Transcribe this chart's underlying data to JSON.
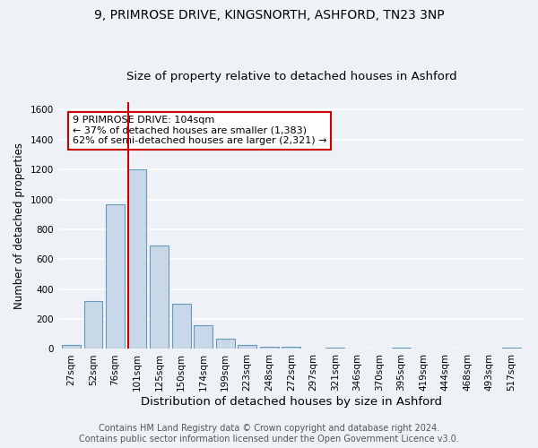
{
  "title1": "9, PRIMROSE DRIVE, KINGSNORTH, ASHFORD, TN23 3NP",
  "title2": "Size of property relative to detached houses in Ashford",
  "xlabel": "Distribution of detached houses by size in Ashford",
  "ylabel": "Number of detached properties",
  "categories": [
    "27sqm",
    "52sqm",
    "76sqm",
    "101sqm",
    "125sqm",
    "150sqm",
    "174sqm",
    "199sqm",
    "223sqm",
    "248sqm",
    "272sqm",
    "297sqm",
    "321sqm",
    "346sqm",
    "370sqm",
    "395sqm",
    "419sqm",
    "444sqm",
    "468sqm",
    "493sqm",
    "517sqm"
  ],
  "values": [
    25,
    320,
    970,
    1200,
    690,
    300,
    160,
    70,
    25,
    15,
    15,
    0,
    10,
    0,
    0,
    10,
    0,
    0,
    0,
    0,
    10
  ],
  "bar_color": "#c8d8e8",
  "bar_edge_color": "#6699bb",
  "red_line_index": 3,
  "red_line_color": "#cc0000",
  "annotation_line1": "9 PRIMROSE DRIVE: 104sqm",
  "annotation_line2": "← 37% of detached houses are smaller (1,383)",
  "annotation_line3": "62% of semi-detached houses are larger (2,321) →",
  "annotation_box_color": "#ffffff",
  "annotation_box_edge": "#cc0000",
  "ylim": [
    0,
    1650
  ],
  "yticks": [
    0,
    200,
    400,
    600,
    800,
    1000,
    1200,
    1400,
    1600
  ],
  "footer1": "Contains HM Land Registry data © Crown copyright and database right 2024.",
  "footer2": "Contains public sector information licensed under the Open Government Licence v3.0.",
  "bg_color": "#eef2f6",
  "grid_color": "#ffffff",
  "title1_fontsize": 10,
  "title2_fontsize": 9.5,
  "xlabel_fontsize": 9.5,
  "ylabel_fontsize": 8.5,
  "tick_fontsize": 7.5,
  "annotation_fontsize": 8,
  "footer_fontsize": 7
}
